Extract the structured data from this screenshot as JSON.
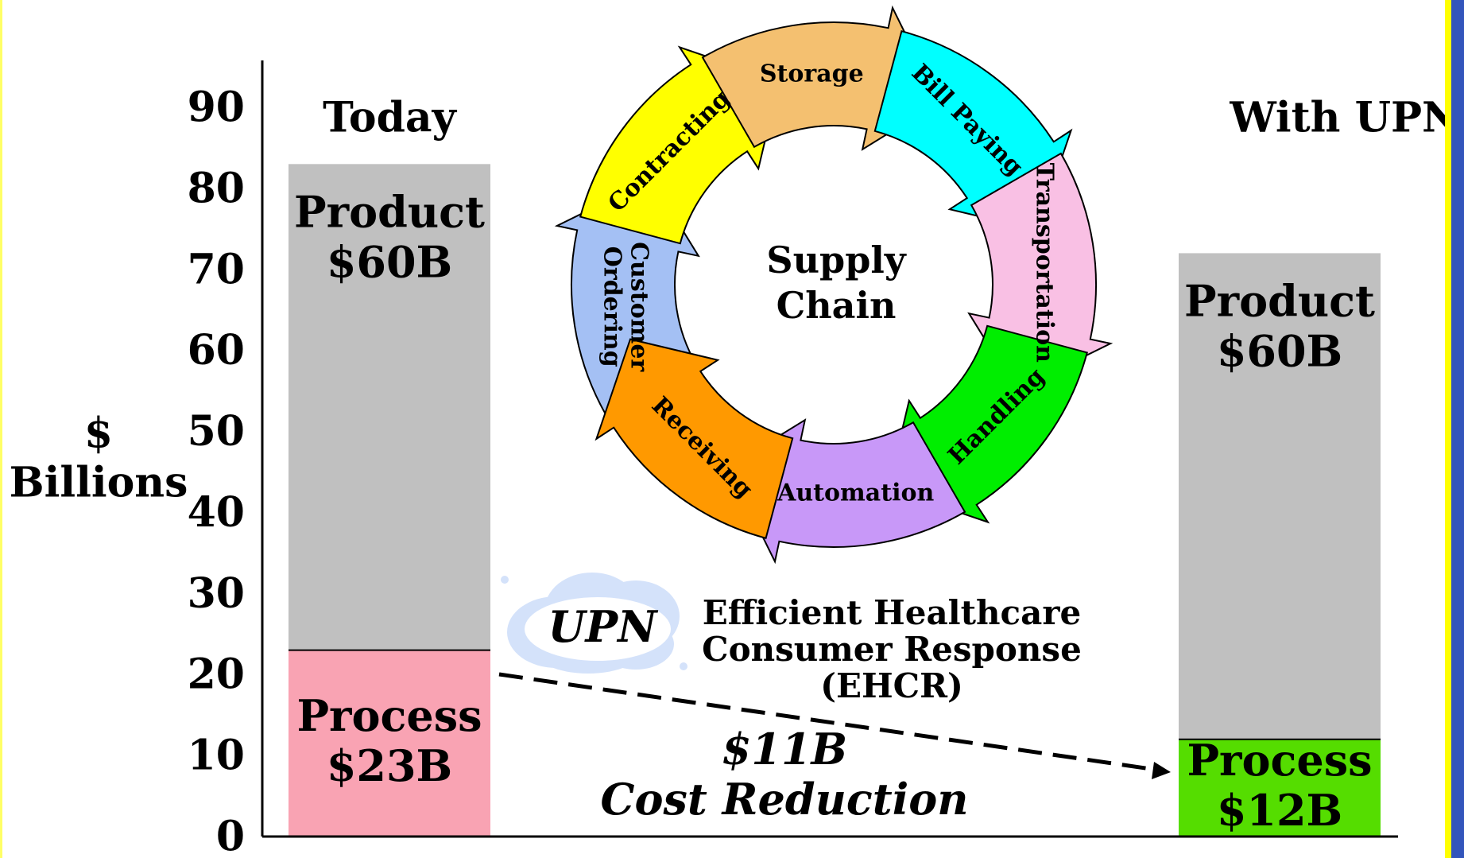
{
  "chart_data": {
    "type": "stacked_bar",
    "y_label": [
      "$",
      "Billions"
    ],
    "categories": [
      "Today",
      "With UPN"
    ],
    "series": [
      {
        "name": "Process",
        "colors": [
          "#f9a3b3",
          "#55dd00"
        ],
        "values": [
          23,
          12
        ],
        "value_labels": [
          "$23B",
          "$12B"
        ]
      },
      {
        "name": "Product",
        "color": "#c0c0c0",
        "values": [
          60,
          60
        ],
        "value_labels": [
          "$60B",
          "$60B"
        ]
      }
    ],
    "ylim": [
      0,
      95
    ],
    "yticks": [
      0,
      10,
      20,
      30,
      40,
      50,
      60,
      70,
      80,
      90
    ],
    "diagram": {
      "center": [
        "Supply",
        "Chain"
      ],
      "steps": [
        {
          "lines": [
            "Customer",
            "Ordering"
          ],
          "color": "#a4c0f4"
        },
        {
          "lines": [
            "Contracting"
          ],
          "color": "#ffff00"
        },
        {
          "lines": [
            "Storage"
          ],
          "color": "#f4c070"
        },
        {
          "lines": [
            "Bill Paying"
          ],
          "color": "#00ffff"
        },
        {
          "lines": [
            "Transportation"
          ],
          "color": "#f9c0e4"
        },
        {
          "lines": [
            "Handling"
          ],
          "color": "#00ee00"
        },
        {
          "lines": [
            "Automation"
          ],
          "color": "#c898f8"
        },
        {
          "lines": [
            "Receiving"
          ],
          "color": "#ff9900"
        }
      ]
    },
    "cloud_label": "UPN",
    "annotation": [
      "Efficient Healthcare",
      "Consumer Response",
      "(EHCR)"
    ],
    "savings": [
      "$11B",
      "Cost Reduction"
    ]
  }
}
